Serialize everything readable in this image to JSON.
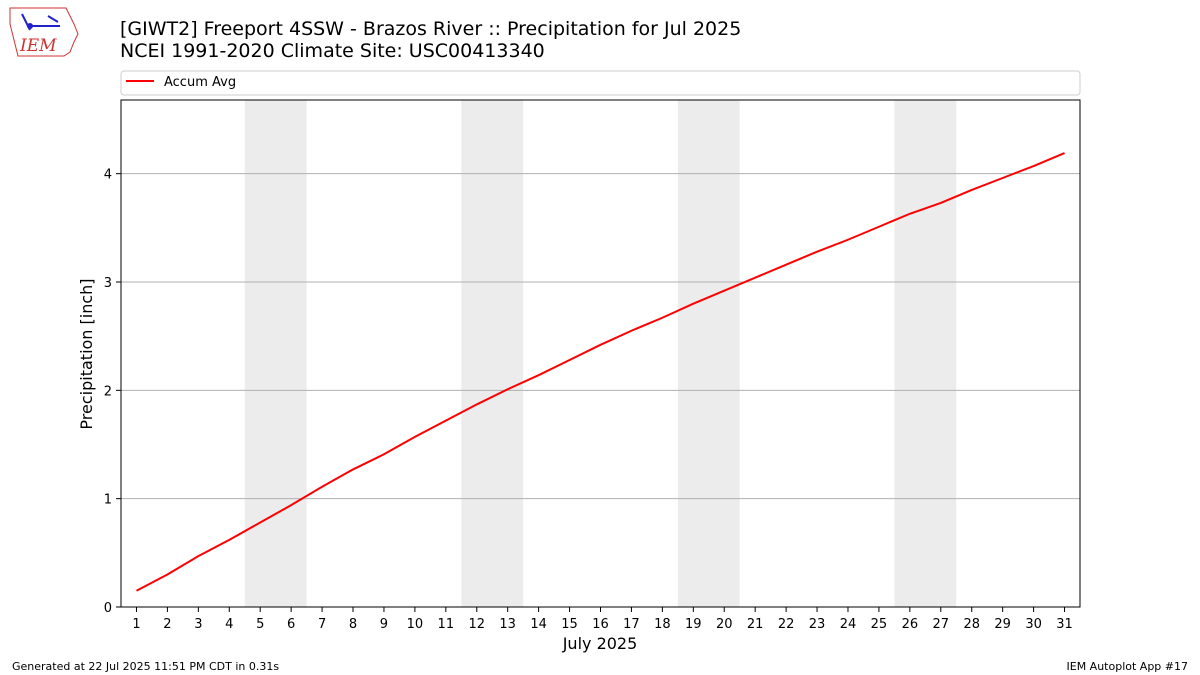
{
  "logo_text": "IEM",
  "footer": {
    "left": "Generated at 22 Jul 2025 11:51 PM CDT in 0.31s",
    "right": "IEM Autoplot App #17"
  },
  "chart_data": {
    "type": "line",
    "title": "[GIWT2] Freeport 4SSW - Brazos River :: Precipitation for Jul 2025",
    "subtitle": "NCEI 1991-2020 Climate Site: USC00413340",
    "x_label": "July 2025",
    "y_label": "Precipitation [inch]",
    "x": [
      1,
      2,
      3,
      4,
      5,
      6,
      7,
      8,
      9,
      10,
      11,
      12,
      13,
      14,
      15,
      16,
      17,
      18,
      19,
      20,
      21,
      22,
      23,
      24,
      25,
      26,
      27,
      28,
      29,
      30,
      31
    ],
    "series": [
      {
        "name": "Accum Avg",
        "color": "#ff0000",
        "values": [
          0.15,
          0.3,
          0.47,
          0.62,
          0.78,
          0.94,
          1.11,
          1.27,
          1.41,
          1.57,
          1.72,
          1.87,
          2.01,
          2.14,
          2.28,
          2.42,
          2.55,
          2.67,
          2.8,
          2.92,
          3.04,
          3.16,
          3.28,
          3.39,
          3.51,
          3.63,
          3.73,
          3.85,
          3.96,
          4.07,
          4.19
        ]
      }
    ],
    "xlim": [
      0.5,
      31.5
    ],
    "ylim": [
      0,
      4.68
    ],
    "xticks": [
      1,
      2,
      3,
      4,
      5,
      6,
      7,
      8,
      9,
      10,
      11,
      12,
      13,
      14,
      15,
      16,
      17,
      18,
      19,
      20,
      21,
      22,
      23,
      24,
      25,
      26,
      27,
      28,
      29,
      30,
      31
    ],
    "yticks": [
      0,
      1,
      2,
      3,
      4
    ],
    "shaded_spans": [
      [
        4.5,
        6.5
      ],
      [
        11.5,
        13.5
      ],
      [
        18.5,
        20.5
      ],
      [
        25.5,
        27.5
      ]
    ],
    "shade_color": "#ececec",
    "grid": true,
    "grid_axis": "y",
    "legend": "top"
  }
}
